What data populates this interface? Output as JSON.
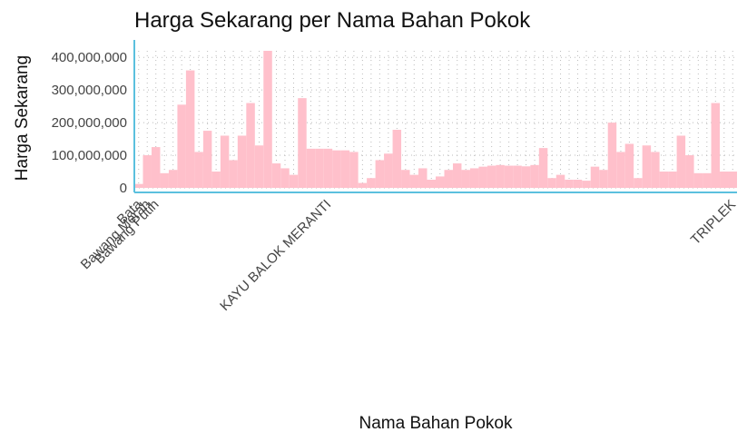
{
  "chart_data": {
    "type": "bar",
    "title": "Harga Sekarang per Nama Bahan Pokok",
    "x_label": "Nama Bahan Pokok",
    "y_label": "Harga Sekarang",
    "color": "#ffc0cb",
    "axis_color": "#5bc0de",
    "grid": true,
    "ylim": [
      0,
      420000000
    ],
    "yticks": [
      {
        "value": 0,
        "label": "0"
      },
      {
        "value": 100000000,
        "label": "100,000,000"
      },
      {
        "value": 200000000,
        "label": "200,000,000"
      },
      {
        "value": 300000000,
        "label": "300,000,000"
      },
      {
        "value": 400000000,
        "label": "400,000,000"
      }
    ],
    "categories": [
      "Bata",
      "Bawang Merah",
      "Bawang Putih",
      null,
      null,
      null,
      null,
      null,
      null,
      null,
      null,
      null,
      null,
      null,
      null,
      null,
      null,
      null,
      null,
      null,
      null,
      null,
      "KAYU BALOK MERANTI",
      null,
      null,
      null,
      null,
      null,
      null,
      null,
      null,
      null,
      null,
      null,
      null,
      null,
      null,
      null,
      null,
      null,
      null,
      null,
      null,
      null,
      null,
      null,
      null,
      null,
      null,
      null,
      null,
      null,
      null,
      null,
      null,
      null,
      null,
      null,
      null,
      null,
      null,
      null,
      null,
      null,
      null,
      null,
      null,
      null,
      null,
      "TRIPLEK"
    ],
    "values": [
      12000000,
      100000000,
      125000000,
      45000000,
      55000000,
      255000000,
      360000000,
      110000000,
      175000000,
      50000000,
      160000000,
      85000000,
      160000000,
      260000000,
      130000000,
      420000000,
      75000000,
      60000000,
      40000000,
      275000000,
      120000000,
      120000000,
      120000000,
      115000000,
      115000000,
      110000000,
      15000000,
      30000000,
      85000000,
      105000000,
      178000000,
      55000000,
      40000000,
      60000000,
      25000000,
      35000000,
      55000000,
      75000000,
      55000000,
      60000000,
      65000000,
      68000000,
      70000000,
      68000000,
      68000000,
      66000000,
      70000000,
      122000000,
      30000000,
      40000000,
      25000000,
      25000000,
      22000000,
      65000000,
      55000000,
      200000000,
      110000000,
      135000000,
      30000000,
      130000000,
      110000000,
      50000000,
      50000000,
      160000000,
      100000000,
      45000000,
      45000000,
      260000000,
      50000000,
      50000000
    ]
  }
}
